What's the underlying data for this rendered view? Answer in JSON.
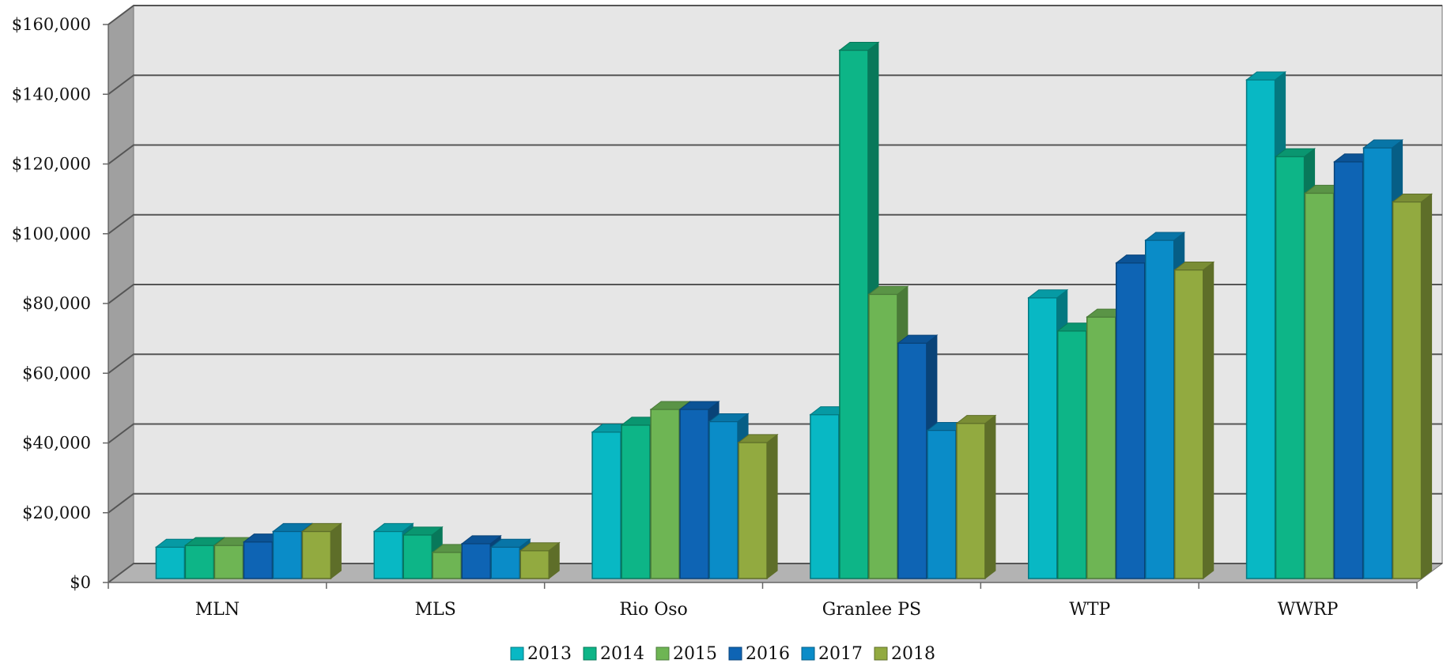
{
  "chart_data": {
    "type": "bar",
    "categories": [
      "MLN",
      "MLS",
      "Rio Oso",
      "Granlee PS",
      "WTP",
      "WWRP"
    ],
    "series": [
      {
        "name": "2013",
        "values": [
          9000,
          13500,
          42000,
          47000,
          80500,
          143000
        ]
      },
      {
        "name": "2014",
        "values": [
          9500,
          12500,
          44000,
          151500,
          71000,
          121000
        ]
      },
      {
        "name": "2015",
        "values": [
          9500,
          7500,
          48500,
          81500,
          75000,
          110500
        ]
      },
      {
        "name": "2016",
        "values": [
          10500,
          10000,
          48500,
          67500,
          90500,
          119500
        ]
      },
      {
        "name": "2017",
        "values": [
          13500,
          9000,
          45000,
          42500,
          97000,
          123500
        ]
      },
      {
        "name": "2018",
        "values": [
          13500,
          8000,
          39000,
          44500,
          88500,
          108000
        ]
      }
    ],
    "y_ticks": [
      "$0",
      "$20,000",
      "$40,000",
      "$60,000",
      "$80,000",
      "$100,000",
      "$120,000",
      "$140,000",
      "$160,000"
    ],
    "ylim": [
      0,
      160000
    ],
    "grid": true,
    "legend_position": "bottom",
    "colors": {
      "front": [
        "#08B8C4",
        "#0DB587",
        "#6EB554",
        "#0E64B4",
        "#0A8CC8",
        "#92AA40"
      ],
      "side": [
        "#047880",
        "#08785A",
        "#4A7A38",
        "#094378",
        "#065E86",
        "#5E6E29"
      ],
      "top": [
        "#069AA4",
        "#0A9670",
        "#5A9446",
        "#0B5396",
        "#0875A7",
        "#7A8D35"
      ],
      "back_wall": "#E6E6E6",
      "side_wall": "#A0A0A0",
      "floor": "#B3B3B3",
      "grid_line": "#555555"
    }
  }
}
